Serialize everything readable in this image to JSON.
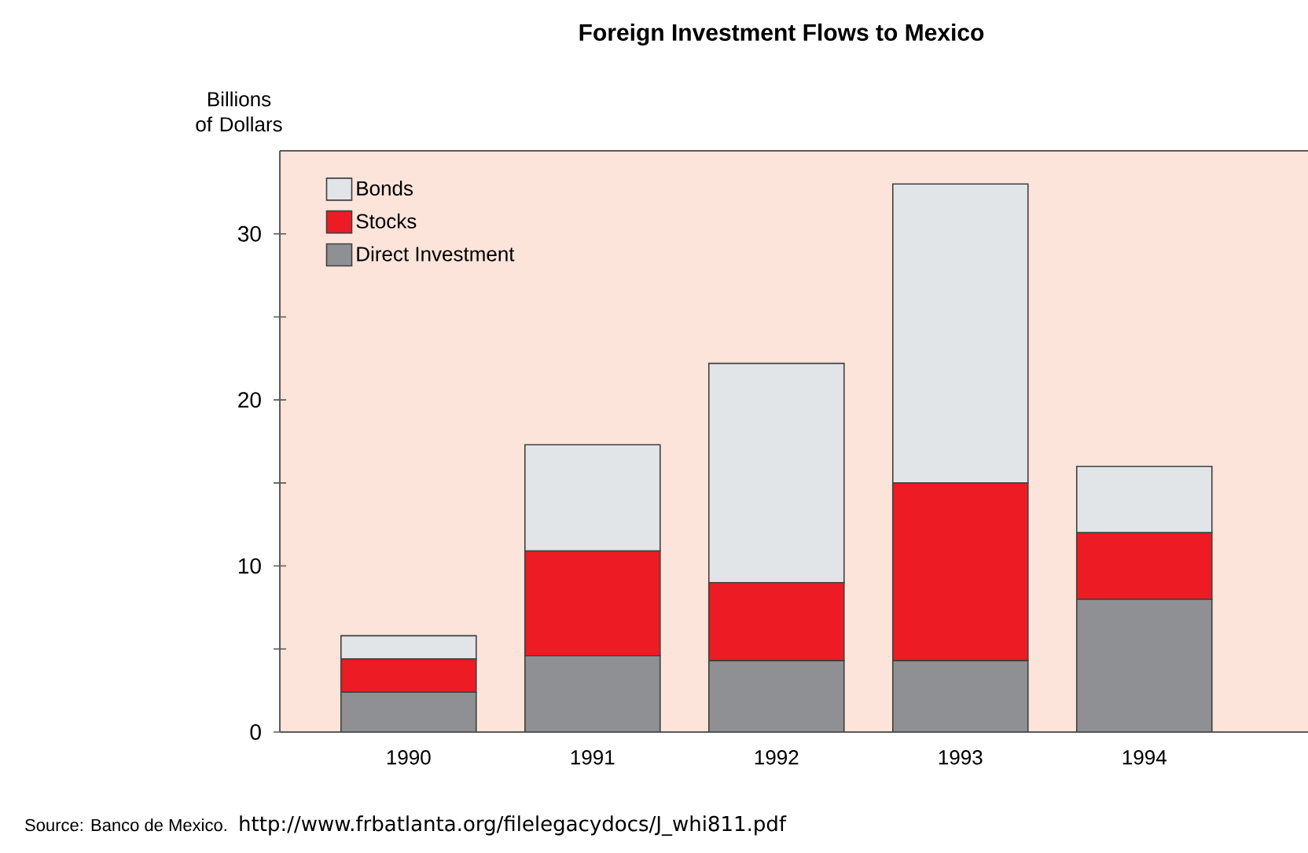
{
  "chart_data": {
    "type": "bar",
    "stacked": true,
    "title": "Foreign Investment Flows to Mexico",
    "ylabel": "Billions of Dollars",
    "categories": [
      "1990",
      "1991",
      "1992",
      "1993",
      "1994"
    ],
    "series": [
      {
        "name": "Direct Investment",
        "color": "#8e9093",
        "values": [
          2.4,
          4.6,
          4.3,
          4.3,
          8.0
        ]
      },
      {
        "name": "Stocks",
        "color": "#ed1c24",
        "values": [
          2.0,
          6.3,
          4.7,
          10.7,
          4.0
        ]
      },
      {
        "name": "Bonds",
        "color": "#e2e5e8",
        "values": [
          1.4,
          6.4,
          13.2,
          18.0,
          4.0
        ]
      }
    ],
    "ylim": [
      0,
      35
    ],
    "yticks": [
      0,
      {
        "value": 5,
        "label": null
      },
      10,
      {
        "value": 15,
        "label": null
      },
      20,
      {
        "value": 25,
        "label": null
      },
      30
    ],
    "legend": "top left",
    "annotations": [
      "Source: Banco de Mexico.",
      "http://www.frbatlanta.org/filelegacydocs/J_whi811.pdf"
    ]
  }
}
